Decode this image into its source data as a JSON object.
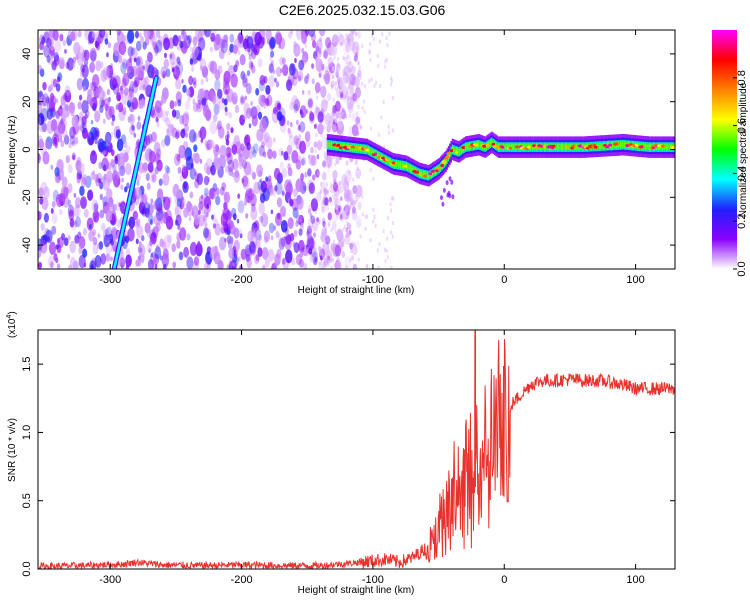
{
  "title": "C2E6.2025.032.15.03.G06",
  "chart_data": [
    {
      "type": "heatmap",
      "xlabel": "Height of straight line (km)",
      "ylabel": "Frequency (Hz)",
      "xlim": [
        -355,
        130
      ],
      "ylim": [
        -50,
        50
      ],
      "xticks": [
        -300,
        -200,
        -100,
        0,
        100
      ],
      "yticks": [
        -40,
        -20,
        0,
        20,
        40
      ],
      "colorbar": {
        "label": "Normalized spectral amplitude",
        "range": [
          0,
          1
        ],
        "ticks": [
          0.0,
          0.2,
          0.4,
          0.6,
          0.8
        ],
        "tick_labels": [
          "0.0",
          "0.2",
          "0.4",
          "0.6",
          "0.8"
        ],
        "colors": [
          "#ffffff",
          "#8b00ff",
          "#2020ff",
          "#00ffff",
          "#00ff00",
          "#ffff00",
          "#ff8000",
          "#ff0000",
          "#ff00ff"
        ]
      },
      "signal_track": [
        {
          "x": -135,
          "freq": 2
        },
        {
          "x": -120,
          "freq": 1
        },
        {
          "x": -105,
          "freq": 0
        },
        {
          "x": -95,
          "freq": -3
        },
        {
          "x": -85,
          "freq": -6
        },
        {
          "x": -75,
          "freq": -7
        },
        {
          "x": -65,
          "freq": -10
        },
        {
          "x": -58,
          "freq": -11
        },
        {
          "x": -50,
          "freq": -8
        },
        {
          "x": -45,
          "freq": -5
        },
        {
          "x": -40,
          "freq": 0
        },
        {
          "x": -35,
          "freq": -1
        },
        {
          "x": -30,
          "freq": 1
        },
        {
          "x": -20,
          "freq": 2
        },
        {
          "x": -15,
          "freq": 1
        },
        {
          "x": -10,
          "freq": 3
        },
        {
          "x": -5,
          "freq": 1
        },
        {
          "x": 0,
          "freq": 1
        },
        {
          "x": 20,
          "freq": 1
        },
        {
          "x": 60,
          "freq": 1
        },
        {
          "x": 90,
          "freq": 2
        },
        {
          "x": 110,
          "freq": 1
        },
        {
          "x": 130,
          "freq": 1
        }
      ],
      "diagonal_streak": [
        {
          "x": -297,
          "freq": -50
        },
        {
          "x": -265,
          "freq": 30
        }
      ],
      "noise_region": [
        -355,
        -130
      ]
    },
    {
      "type": "line",
      "xlabel": "Height of straight line (km)",
      "ylabel": "SNR (10 * v/v)",
      "y_multiplier_label": "(x10",
      "y_multiplier_exp": "4",
      "y_multiplier_close": ")",
      "xlim": [
        -355,
        130
      ],
      "ylim": [
        0,
        17500
      ],
      "xticks": [
        -300,
        -200,
        -100,
        0,
        100
      ],
      "yticks": [
        0,
        5000,
        10000,
        15000
      ],
      "ytick_labels": [
        "0.0",
        "0.5",
        "1.0",
        "1.5"
      ],
      "line_color": "#e8322d",
      "series": [
        {
          "x": [
            -355,
            -320,
            -290,
            -280,
            -260,
            -230,
            -200,
            -170,
            -140,
            -120,
            -100,
            -90,
            -80,
            -70,
            -60,
            -55,
            -50,
            -45,
            -40,
            -35,
            -30,
            -25,
            -22,
            -20,
            -15,
            -10,
            -5,
            0,
            5,
            10,
            15,
            20,
            25,
            30,
            35,
            40,
            50,
            60,
            70,
            80,
            90,
            100,
            110,
            120,
            130
          ],
          "values": [
            200,
            250,
            350,
            500,
            300,
            250,
            300,
            250,
            250,
            400,
            600,
            700,
            500,
            800,
            1500,
            2500,
            3500,
            5000,
            6500,
            6000,
            7000,
            7500,
            17500,
            8500,
            9500,
            10000,
            11000,
            11500,
            12000,
            12500,
            13000,
            13500,
            13700,
            13800,
            13800,
            13800,
            13900,
            13800,
            13800,
            13700,
            13500,
            13200,
            13200,
            13200,
            13200
          ]
        }
      ]
    }
  ]
}
